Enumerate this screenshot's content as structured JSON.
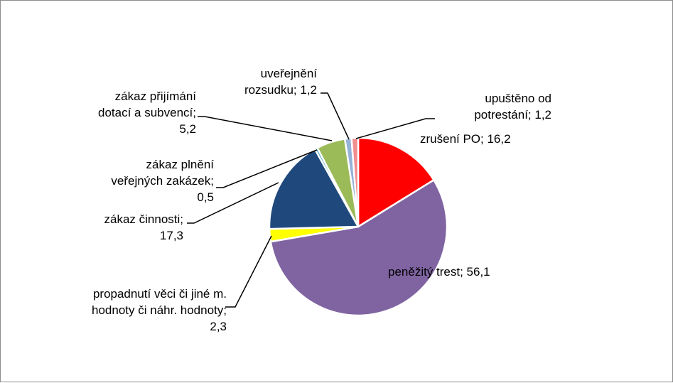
{
  "chart_data": {
    "type": "pie",
    "title": "",
    "unit": "%",
    "slices": [
      {
        "name": "zrušení PO",
        "value": 16.2,
        "value_label": "16,2",
        "color": "#ff0000",
        "label_lines": [
          "zrušení PO; 16,2"
        ]
      },
      {
        "name": "peněžitý trest",
        "value": 56.1,
        "value_label": "56,1",
        "color": "#8064a2",
        "label_lines": [
          "peněžitý trest; 56,1"
        ]
      },
      {
        "name": "propadnutí věci či jiné m. hodnoty či náhr. hodnoty",
        "value": 2.3,
        "value_label": "2,3",
        "color": "#ffff00",
        "label_lines": [
          "propadnutí věci či jiné m.",
          "hodnoty či náhr. hodnoty;",
          "2,3"
        ]
      },
      {
        "name": "zákaz činnosti",
        "value": 17.3,
        "value_label": "17,3",
        "color": "#1f497d",
        "label_lines": [
          "zákaz činnosti;",
          "17,3"
        ]
      },
      {
        "name": "zákaz plnění veřejných zakázek",
        "value": 0.5,
        "value_label": "0,5",
        "color": "#4bacc6",
        "label_lines": [
          "zákaz plnění",
          "veřejných zakázek;",
          "0,5"
        ]
      },
      {
        "name": "zákaz přijímání dotací a subvencí",
        "value": 5.2,
        "value_label": "5,2",
        "color": "#9bbb59",
        "label_lines": [
          "zákaz přijímání",
          "dotací a subvencí;",
          "5,2"
        ]
      },
      {
        "name": "uveřejnění rozsudku",
        "value": 1.2,
        "value_label": "1,2",
        "color": "#95b3d7",
        "label_lines": [
          "uveřejnění",
          "rozsudku; 1,2"
        ]
      },
      {
        "name": "upuštěno od potrestání",
        "value": 1.2,
        "value_label": "1,2",
        "color": "#f28e8e",
        "label_lines": [
          "upuštěno od",
          "potrestání; 1,2"
        ]
      }
    ],
    "legend": "none",
    "data_labels": "outside-with-leader-lines"
  }
}
